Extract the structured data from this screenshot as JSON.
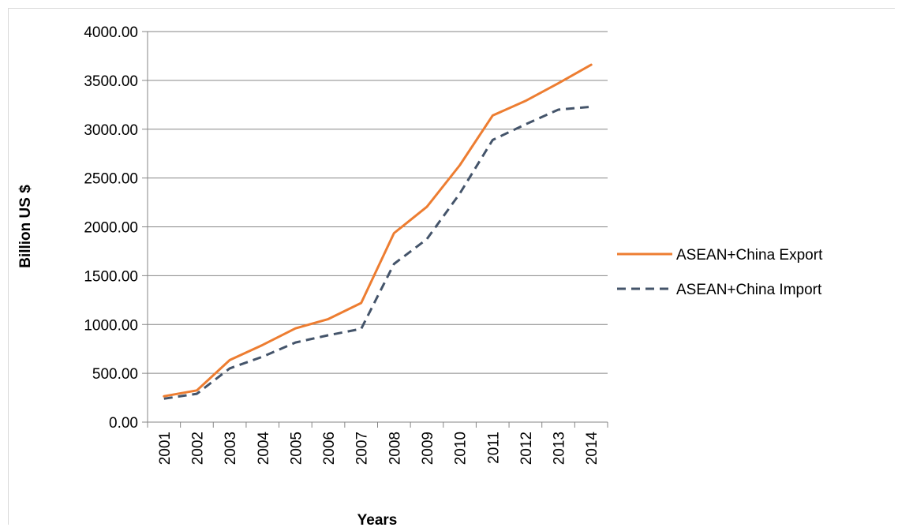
{
  "chart_data": {
    "type": "line",
    "title": "",
    "xlabel": "Years",
    "ylabel": "Billion US $",
    "ylim": [
      0,
      4000
    ],
    "yticks": [
      "0.00",
      "500.00",
      "1000.00",
      "1500.00",
      "2000.00",
      "2500.00",
      "3000.00",
      "3500.00",
      "4000.00"
    ],
    "categories": [
      "2001",
      "2002",
      "2003",
      "2004",
      "2005",
      "2006",
      "2007",
      "2008",
      "2009",
      "2010",
      "2011",
      "2012",
      "2013",
      "2014"
    ],
    "grid": "horizontal",
    "legend_position": "right",
    "series": [
      {
        "name": "ASEAN+China Export",
        "color": "#ed7d31",
        "style": "solid",
        "values": [
          265,
          325,
          635,
          790,
          960,
          1055,
          1220,
          1935,
          2205,
          2630,
          3140,
          3290,
          3470,
          3660
        ]
      },
      {
        "name": "ASEAN+China Import",
        "color": "#44546a",
        "style": "dashed",
        "values": [
          240,
          290,
          550,
          670,
          815,
          890,
          955,
          1620,
          1875,
          2340,
          2890,
          3050,
          3200,
          3230
        ]
      }
    ]
  }
}
